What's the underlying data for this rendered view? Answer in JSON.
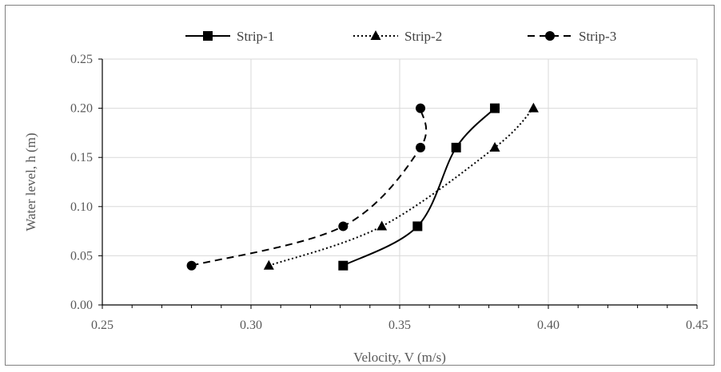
{
  "chart_data": {
    "type": "scatter",
    "xlabel": "Velocity,  V (m/s)",
    "ylabel": "Water level,  h (m)",
    "xlim": [
      0.25,
      0.45
    ],
    "ylim": [
      0,
      0.25
    ],
    "xticks": [
      "0.25",
      "0.30",
      "0.35",
      "0.40",
      "0.45"
    ],
    "yticks": [
      "0.00",
      "0.05",
      "0.10",
      "0.15",
      "0.20",
      "0.25"
    ],
    "grid": "both",
    "legend": "top",
    "series": [
      {
        "name": "Strip-1",
        "marker": "square",
        "line": "solid",
        "x": [
          0.331,
          0.356,
          0.369,
          0.382
        ],
        "y": [
          0.04,
          0.08,
          0.16,
          0.2
        ]
      },
      {
        "name": "Strip-2",
        "marker": "triangle",
        "line": "dotted",
        "x": [
          0.306,
          0.344,
          0.382,
          0.395
        ],
        "y": [
          0.04,
          0.08,
          0.16,
          0.2
        ]
      },
      {
        "name": "Strip-3",
        "marker": "circle",
        "line": "dashed",
        "x": [
          0.28,
          0.331,
          0.357,
          0.357
        ],
        "y": [
          0.04,
          0.08,
          0.16,
          0.2
        ]
      }
    ]
  },
  "colors": {
    "series": "#000000",
    "grid": "#d9d9d9",
    "axis": "#000000",
    "text": "#595959"
  }
}
